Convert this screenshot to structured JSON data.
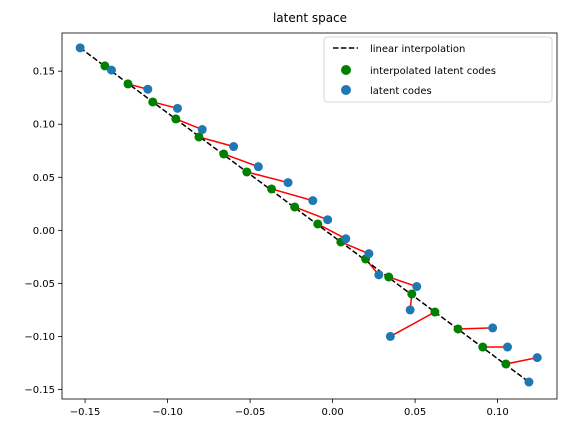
{
  "chart_data": {
    "type": "scatter",
    "title": "latent space",
    "xlabel": "",
    "ylabel": "",
    "xlim": [
      -0.164,
      0.136
    ],
    "ylim": [
      -0.159,
      0.186
    ],
    "xticks": [
      -0.15,
      -0.1,
      -0.05,
      0.0,
      0.05,
      0.1
    ],
    "xtick_labels": [
      "−0.15",
      "−0.10",
      "−0.05",
      "0.00",
      "0.05",
      "0.10"
    ],
    "yticks": [
      0.15,
      0.1,
      0.05,
      0.0,
      -0.05,
      -0.1,
      -0.15
    ],
    "ytick_labels": [
      "0.15",
      "0.10",
      "0.05",
      "0.00",
      "−0.05",
      "−0.10",
      "−0.15"
    ],
    "grid": false,
    "legend": "top-right",
    "series": [
      {
        "name": "linear interpolation",
        "kind": "line",
        "color": "#000000",
        "dash": "dashed",
        "x": [
          -0.153,
          0.119
        ],
        "y": [
          0.172,
          -0.143
        ]
      },
      {
        "name": "interpolated latent codes",
        "kind": "scatter",
        "color": "#008000",
        "x": [
          -0.138,
          -0.124,
          -0.109,
          -0.095,
          -0.081,
          -0.066,
          -0.052,
          -0.037,
          -0.023,
          -0.009,
          0.005,
          0.02,
          0.034,
          0.048,
          0.062,
          0.076,
          0.091,
          0.105
        ],
        "y": [
          0.155,
          0.138,
          0.121,
          0.105,
          0.088,
          0.072,
          0.055,
          0.039,
          0.022,
          0.006,
          -0.011,
          -0.027,
          -0.044,
          -0.06,
          -0.077,
          -0.093,
          -0.11,
          -0.126
        ]
      },
      {
        "name": "latent codes",
        "kind": "scatter",
        "color": "#1f77b4",
        "x": [
          -0.153,
          -0.134,
          -0.112,
          -0.094,
          -0.079,
          -0.06,
          -0.045,
          -0.027,
          -0.012,
          -0.003,
          0.008,
          0.022,
          0.028,
          0.051,
          0.047,
          0.035,
          0.097,
          0.106,
          0.124,
          0.119
        ],
        "y": [
          0.172,
          0.151,
          0.133,
          0.115,
          0.095,
          0.079,
          0.06,
          0.045,
          0.028,
          0.01,
          -0.008,
          -0.022,
          -0.042,
          -0.053,
          -0.075,
          -0.1,
          -0.092,
          -0.11,
          -0.12,
          -0.143
        ]
      },
      {
        "name": "",
        "kind": "segments",
        "color": "#ff0000",
        "pairs": [
          [
            [
              -0.138,
              0.155
            ],
            [
              -0.134,
              0.151
            ]
          ],
          [
            [
              -0.124,
              0.138
            ],
            [
              -0.112,
              0.133
            ]
          ],
          [
            [
              -0.109,
              0.121
            ],
            [
              -0.094,
              0.115
            ]
          ],
          [
            [
              -0.095,
              0.105
            ],
            [
              -0.079,
              0.095
            ]
          ],
          [
            [
              -0.081,
              0.088
            ],
            [
              -0.06,
              0.079
            ]
          ],
          [
            [
              -0.066,
              0.072
            ],
            [
              -0.045,
              0.06
            ]
          ],
          [
            [
              -0.052,
              0.055
            ],
            [
              -0.027,
              0.045
            ]
          ],
          [
            [
              -0.037,
              0.039
            ],
            [
              -0.012,
              0.028
            ]
          ],
          [
            [
              -0.023,
              0.022
            ],
            [
              -0.003,
              0.01
            ]
          ],
          [
            [
              -0.009,
              0.006
            ],
            [
              0.008,
              -0.008
            ]
          ],
          [
            [
              0.005,
              -0.011
            ],
            [
              0.022,
              -0.022
            ]
          ],
          [
            [
              0.02,
              -0.027
            ],
            [
              0.028,
              -0.042
            ]
          ],
          [
            [
              0.034,
              -0.044
            ],
            [
              0.051,
              -0.053
            ]
          ],
          [
            [
              0.048,
              -0.06
            ],
            [
              0.047,
              -0.075
            ]
          ],
          [
            [
              0.062,
              -0.077
            ],
            [
              0.035,
              -0.1
            ]
          ],
          [
            [
              0.076,
              -0.093
            ],
            [
              0.097,
              -0.092
            ]
          ],
          [
            [
              0.091,
              -0.11
            ],
            [
              0.106,
              -0.11
            ]
          ],
          [
            [
              0.105,
              -0.126
            ],
            [
              0.124,
              -0.12
            ]
          ]
        ]
      }
    ]
  }
}
